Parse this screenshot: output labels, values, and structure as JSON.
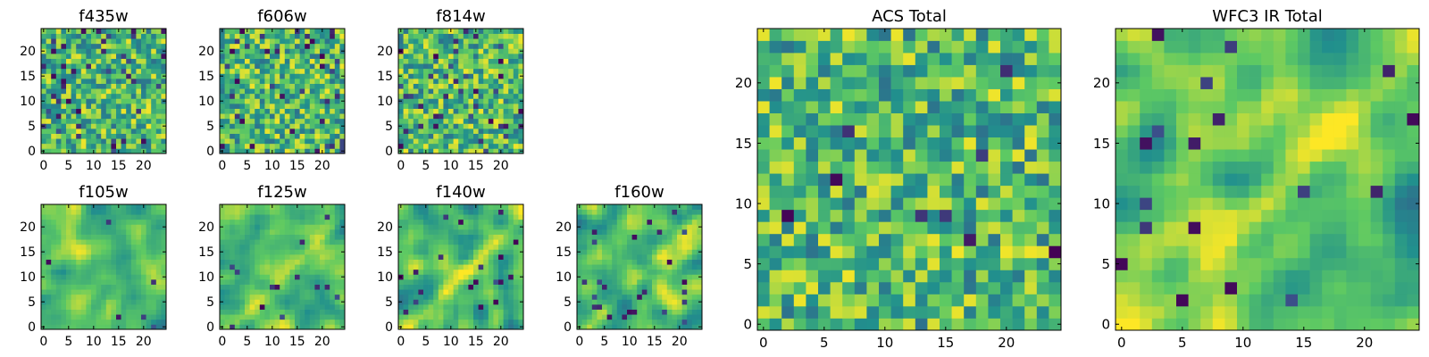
{
  "figure": {
    "colormap": "viridis",
    "colormap_stops": [
      "#440154",
      "#3b528b",
      "#21908d",
      "#5dc963",
      "#fde725"
    ]
  },
  "chart_data": [
    {
      "type": "heatmap",
      "title": "f435w",
      "grid_size": [
        25,
        25
      ],
      "xlim": [
        -0.5,
        24.5
      ],
      "ylim": [
        -0.5,
        24.5
      ],
      "xticks": [
        0,
        5,
        10,
        15,
        20
      ],
      "yticks": [
        0,
        5,
        10,
        15,
        20
      ],
      "texture": "fine-noise",
      "seed": 11,
      "smooth": 0.0,
      "dark_fraction": 0.07,
      "diagonal_band": false
    },
    {
      "type": "heatmap",
      "title": "f606w",
      "grid_size": [
        25,
        25
      ],
      "xlim": [
        -0.5,
        24.5
      ],
      "ylim": [
        -0.5,
        24.5
      ],
      "xticks": [
        0,
        5,
        10,
        15,
        20
      ],
      "yticks": [
        0,
        5,
        10,
        15,
        20
      ],
      "texture": "fine-noise",
      "seed": 23,
      "smooth": 0.0,
      "dark_fraction": 0.06,
      "diagonal_band": false
    },
    {
      "type": "heatmap",
      "title": "f814w",
      "grid_size": [
        25,
        25
      ],
      "xlim": [
        -0.5,
        24.5
      ],
      "ylim": [
        -0.5,
        24.5
      ],
      "xticks": [
        0,
        5,
        10,
        15,
        20
      ],
      "yticks": [
        0,
        5,
        10,
        15,
        20
      ],
      "texture": "fine-noise",
      "seed": 37,
      "smooth": 0.0,
      "dark_fraction": 0.06,
      "diagonal_band": false
    },
    {
      "type": "heatmap",
      "title": "f105w",
      "grid_size": [
        25,
        25
      ],
      "xlim": [
        -0.5,
        24.5
      ],
      "ylim": [
        -0.5,
        24.5
      ],
      "xticks": [
        0,
        5,
        10,
        15,
        20
      ],
      "yticks": [
        0,
        5,
        10,
        15,
        20
      ],
      "texture": "smooth",
      "seed": 41,
      "smooth": 0.55,
      "dark_fraction": 0.01,
      "diagonal_band": false
    },
    {
      "type": "heatmap",
      "title": "f125w",
      "grid_size": [
        25,
        25
      ],
      "xlim": [
        -0.5,
        24.5
      ],
      "ylim": [
        -0.5,
        24.5
      ],
      "xticks": [
        0,
        5,
        10,
        15,
        20
      ],
      "yticks": [
        0,
        5,
        10,
        15,
        20
      ],
      "texture": "smooth",
      "seed": 53,
      "smooth": 0.55,
      "dark_fraction": 0.02,
      "diagonal_band": true
    },
    {
      "type": "heatmap",
      "title": "f140w",
      "grid_size": [
        25,
        25
      ],
      "xlim": [
        -0.5,
        24.5
      ],
      "ylim": [
        -0.5,
        24.5
      ],
      "xticks": [
        0,
        5,
        10,
        15,
        20
      ],
      "yticks": [
        0,
        5,
        10,
        15,
        20
      ],
      "texture": "smooth",
      "seed": 67,
      "smooth": 0.5,
      "dark_fraction": 0.03,
      "diagonal_band": true
    },
    {
      "type": "heatmap",
      "title": "f160w",
      "grid_size": [
        25,
        25
      ],
      "xlim": [
        -0.5,
        24.5
      ],
      "ylim": [
        -0.5,
        24.5
      ],
      "xticks": [
        0,
        5,
        10,
        15,
        20
      ],
      "yticks": [
        0,
        5,
        10,
        15,
        20
      ],
      "texture": "smooth",
      "seed": 79,
      "smooth": 0.5,
      "dark_fraction": 0.04,
      "diagonal_band": true
    },
    {
      "type": "heatmap",
      "title": "ACS Total",
      "grid_size": [
        25,
        25
      ],
      "xlim": [
        -0.5,
        24.5
      ],
      "ylim": [
        -0.5,
        24.5
      ],
      "xticks": [
        0,
        5,
        10,
        15,
        20
      ],
      "yticks": [
        0,
        5,
        10,
        15,
        20
      ],
      "texture": "fine-noise",
      "seed": 97,
      "smooth": 0.1,
      "dark_fraction": 0.015,
      "diagonal_band": false
    },
    {
      "type": "heatmap",
      "title": "WFC3 IR Total",
      "grid_size": [
        25,
        25
      ],
      "xlim": [
        -0.5,
        24.5
      ],
      "ylim": [
        -0.5,
        24.5
      ],
      "xticks": [
        0,
        5,
        10,
        15,
        20
      ],
      "yticks": [
        0,
        5,
        10,
        15,
        20
      ],
      "texture": "smooth",
      "seed": 113,
      "smooth": 0.6,
      "dark_fraction": 0.03,
      "diagonal_band": true
    }
  ]
}
